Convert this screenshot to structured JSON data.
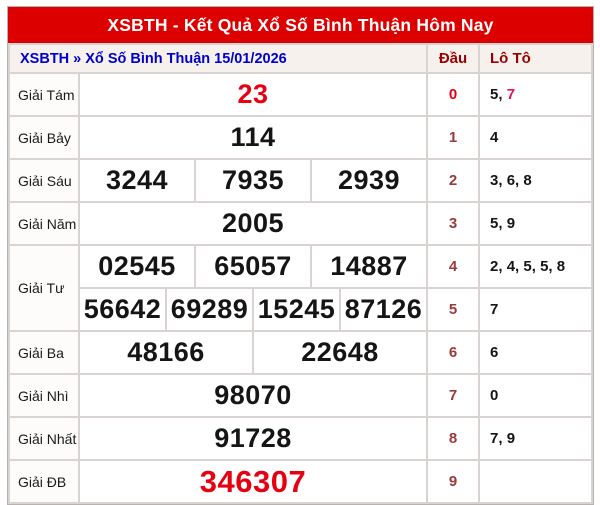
{
  "title": "XSBTH - Kết Quả Xổ Số Bình Thuận Hôm Nay",
  "breadcrumb": "XSBTH » Xổ Số Bình Thuận 15/01/2026",
  "columns": {
    "dau": "Đầu",
    "loto": "Lô Tô"
  },
  "colors": {
    "title_bar_red": "#dd0000",
    "accent_red": "#e60012",
    "dark_red_header": "#990000",
    "dau_dark_red": "#9a3b3b",
    "loto_highlight_red": "#e4124f",
    "link_blue": "#0000cc",
    "header_row_bg": "#f6f1ed",
    "grid_line": "#d9d4d1"
  },
  "rows": [
    {
      "label": "Giải Tám",
      "span": 1,
      "nums": [
        {
          "v": "23",
          "style": "red"
        }
      ],
      "dau": {
        "v": "0",
        "hl": true
      },
      "loto": [
        {
          "v": "5"
        },
        {
          "v": "7",
          "hl": true
        }
      ]
    },
    {
      "label": "Giải Bảy",
      "span": 1,
      "nums": [
        {
          "v": "114"
        }
      ],
      "dau": {
        "v": "1"
      },
      "loto": [
        {
          "v": "4"
        }
      ]
    },
    {
      "label": "Giải Sáu",
      "span": 1,
      "nums": [
        {
          "v": "3244"
        },
        {
          "v": "7935"
        },
        {
          "v": "2939"
        }
      ],
      "dau": {
        "v": "2"
      },
      "loto": [
        {
          "v": "3"
        },
        {
          "v": "6"
        },
        {
          "v": "8"
        }
      ]
    },
    {
      "label": "Giải Năm",
      "span": 1,
      "nums": [
        {
          "v": "2005"
        }
      ],
      "dau": {
        "v": "3"
      },
      "loto": [
        {
          "v": "5"
        },
        {
          "v": "9"
        }
      ]
    },
    {
      "label": "Giải Tư",
      "span": 2,
      "nums": [
        {
          "v": "02545"
        },
        {
          "v": "65057"
        },
        {
          "v": "14887"
        }
      ],
      "dau": {
        "v": "4"
      },
      "loto": [
        {
          "v": "2"
        },
        {
          "v": "4"
        },
        {
          "v": "5"
        },
        {
          "v": "5"
        },
        {
          "v": "8"
        }
      ]
    },
    {
      "label": null,
      "span": 0,
      "nums": [
        {
          "v": "56642"
        },
        {
          "v": "69289"
        },
        {
          "v": "15245"
        },
        {
          "v": "87126"
        }
      ],
      "dau": {
        "v": "5"
      },
      "loto": [
        {
          "v": "7"
        }
      ]
    },
    {
      "label": "Giải Ba",
      "span": 1,
      "nums": [
        {
          "v": "48166"
        },
        {
          "v": "22648"
        }
      ],
      "dau": {
        "v": "6"
      },
      "loto": [
        {
          "v": "6"
        }
      ]
    },
    {
      "label": "Giải Nhì",
      "span": 1,
      "nums": [
        {
          "v": "98070"
        }
      ],
      "dau": {
        "v": "7"
      },
      "loto": [
        {
          "v": "0"
        }
      ]
    },
    {
      "label": "Giải Nhất",
      "span": 1,
      "nums": [
        {
          "v": "91728"
        }
      ],
      "dau": {
        "v": "8"
      },
      "loto": [
        {
          "v": "7"
        },
        {
          "v": "9"
        }
      ]
    },
    {
      "label": "Giải ĐB",
      "span": 1,
      "nums": [
        {
          "v": "346307",
          "style": "red-big"
        }
      ],
      "dau": {
        "v": "9"
      },
      "loto": []
    }
  ]
}
